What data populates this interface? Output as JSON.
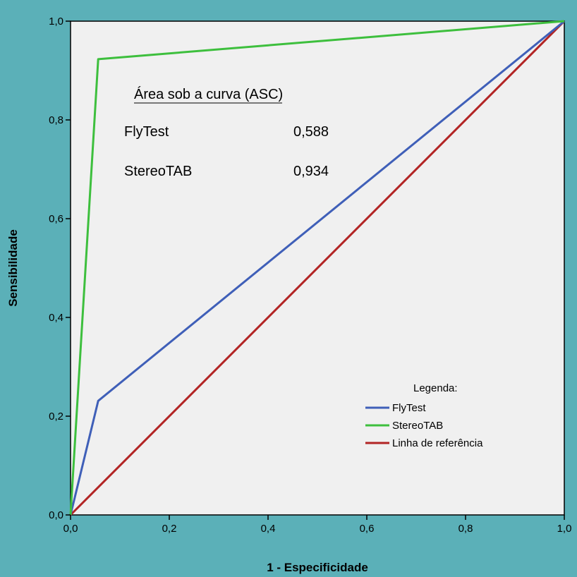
{
  "colors": {
    "page_background": "#5bb0b8",
    "plot_background": "#f0f0f0"
  },
  "chart_data": {
    "type": "line",
    "xlabel": "1 - Especificidade",
    "ylabel": "Sensibilidade",
    "xlim": [
      0,
      1
    ],
    "ylim": [
      0,
      1
    ],
    "x_ticks": [
      "0,0",
      "0,2",
      "0,4",
      "0,6",
      "0,8",
      "1,0"
    ],
    "y_ticks": [
      "0,0",
      "0,2",
      "0,4",
      "0,6",
      "0,8",
      "1,0"
    ],
    "grid": false,
    "series": [
      {
        "name": "FlyTest",
        "color": "#3f5fb8",
        "points": [
          [
            0,
            0
          ],
          [
            0.056,
            0.231
          ],
          [
            1,
            1
          ]
        ]
      },
      {
        "name": "StereoTAB",
        "color": "#3dbf3d",
        "points": [
          [
            0,
            0
          ],
          [
            0.056,
            0.923
          ],
          [
            1,
            1
          ]
        ]
      },
      {
        "name": "Linha de referência",
        "color": "#b22424",
        "points": [
          [
            0,
            0
          ],
          [
            1,
            1
          ]
        ]
      }
    ],
    "legend": {
      "title": "Legenda:",
      "placement": "bottom-right",
      "items": [
        "FlyTest",
        "StereoTAB",
        "Linha de referência"
      ]
    },
    "annotation": {
      "title": "Área sob a curva (ASC)",
      "rows": [
        {
          "label": "FlyTest",
          "value": "0,588"
        },
        {
          "label": "StereoTAB",
          "value": "0,934"
        }
      ]
    }
  }
}
